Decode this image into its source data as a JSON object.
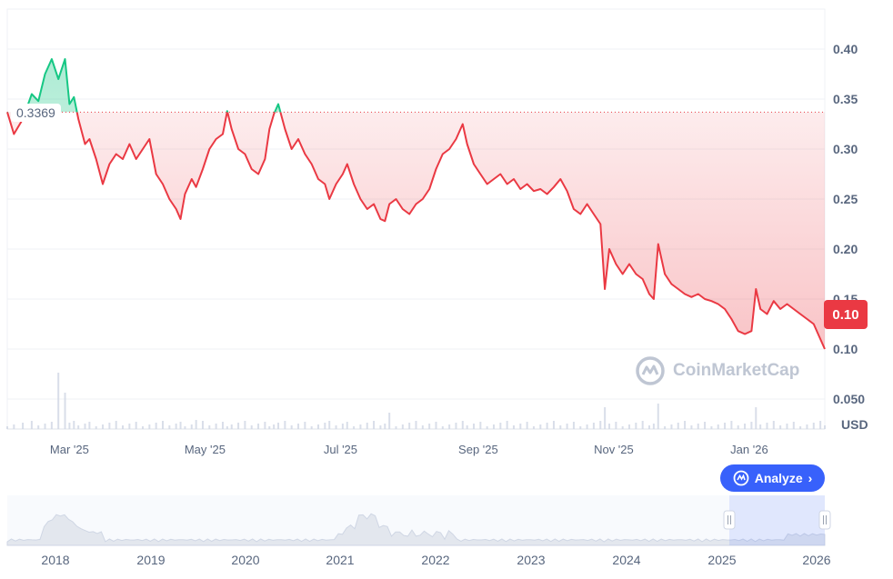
{
  "chart_data": {
    "type": "line",
    "y_unit": "USD",
    "reference_price": "0.3369",
    "reference_value": 0.3369,
    "current_price_label": "0.10",
    "current_value": 0.1,
    "ylim": [
      0.02,
      0.44
    ],
    "y_ticks": [
      {
        "label": "0.40",
        "value": 0.4
      },
      {
        "label": "0.35",
        "value": 0.35
      },
      {
        "label": "0.30",
        "value": 0.3
      },
      {
        "label": "0.25",
        "value": 0.25
      },
      {
        "label": "0.20",
        "value": 0.2
      },
      {
        "label": "0.15",
        "value": 0.15
      },
      {
        "label": "0.10",
        "value": 0.1
      },
      {
        "label": "0.050",
        "value": 0.05
      }
    ],
    "x_ticks": [
      {
        "label": "Mar '25",
        "date": "2025-03-01"
      },
      {
        "label": "May '25",
        "date": "2025-05-01"
      },
      {
        "label": "Jul '25",
        "date": "2025-07-01"
      },
      {
        "label": "Sep '25",
        "date": "2025-09-01"
      },
      {
        "label": "Nov '25",
        "date": "2025-11-01"
      },
      {
        "label": "Jan '26",
        "date": "2026-01-01"
      }
    ],
    "x_range": [
      "2025-02-01",
      "2026-02-04"
    ],
    "series": [
      {
        "color_up": "#16c784",
        "color_down": "#ea3943",
        "points": [
          [
            "2025-02-01",
            0.337
          ],
          [
            "2025-02-04",
            0.315
          ],
          [
            "2025-02-08",
            0.33
          ],
          [
            "2025-02-12",
            0.355
          ],
          [
            "2025-02-15",
            0.348
          ],
          [
            "2025-02-18",
            0.375
          ],
          [
            "2025-02-21",
            0.39
          ],
          [
            "2025-02-24",
            0.37
          ],
          [
            "2025-02-27",
            0.39
          ],
          [
            "2025-03-01",
            0.345
          ],
          [
            "2025-03-03",
            0.352
          ],
          [
            "2025-03-05",
            0.33
          ],
          [
            "2025-03-08",
            0.305
          ],
          [
            "2025-03-10",
            0.31
          ],
          [
            "2025-03-13",
            0.29
          ],
          [
            "2025-03-16",
            0.265
          ],
          [
            "2025-03-19",
            0.285
          ],
          [
            "2025-03-22",
            0.295
          ],
          [
            "2025-03-25",
            0.29
          ],
          [
            "2025-03-28",
            0.305
          ],
          [
            "2025-03-31",
            0.29
          ],
          [
            "2025-04-03",
            0.3
          ],
          [
            "2025-04-06",
            0.31
          ],
          [
            "2025-04-09",
            0.275
          ],
          [
            "2025-04-12",
            0.265
          ],
          [
            "2025-04-15",
            0.25
          ],
          [
            "2025-04-18",
            0.24
          ],
          [
            "2025-04-20",
            0.23
          ],
          [
            "2025-04-22",
            0.255
          ],
          [
            "2025-04-25",
            0.27
          ],
          [
            "2025-04-27",
            0.262
          ],
          [
            "2025-04-30",
            0.28
          ],
          [
            "2025-05-03",
            0.3
          ],
          [
            "2025-05-06",
            0.31
          ],
          [
            "2025-05-09",
            0.315
          ],
          [
            "2025-05-11",
            0.338
          ],
          [
            "2025-05-13",
            0.32
          ],
          [
            "2025-05-16",
            0.3
          ],
          [
            "2025-05-19",
            0.295
          ],
          [
            "2025-05-22",
            0.28
          ],
          [
            "2025-05-25",
            0.275
          ],
          [
            "2025-05-28",
            0.29
          ],
          [
            "2025-05-30",
            0.32
          ],
          [
            "2025-06-01",
            0.335
          ],
          [
            "2025-06-03",
            0.345
          ],
          [
            "2025-06-06",
            0.32
          ],
          [
            "2025-06-09",
            0.3
          ],
          [
            "2025-06-12",
            0.31
          ],
          [
            "2025-06-15",
            0.295
          ],
          [
            "2025-06-18",
            0.285
          ],
          [
            "2025-06-21",
            0.27
          ],
          [
            "2025-06-24",
            0.265
          ],
          [
            "2025-06-26",
            0.25
          ],
          [
            "2025-06-29",
            0.265
          ],
          [
            "2025-07-02",
            0.275
          ],
          [
            "2025-07-04",
            0.285
          ],
          [
            "2025-07-07",
            0.265
          ],
          [
            "2025-07-10",
            0.25
          ],
          [
            "2025-07-13",
            0.24
          ],
          [
            "2025-07-16",
            0.245
          ],
          [
            "2025-07-19",
            0.23
          ],
          [
            "2025-07-21",
            0.228
          ],
          [
            "2025-07-23",
            0.245
          ],
          [
            "2025-07-26",
            0.25
          ],
          [
            "2025-07-29",
            0.24
          ],
          [
            "2025-08-01",
            0.235
          ],
          [
            "2025-08-04",
            0.245
          ],
          [
            "2025-08-07",
            0.25
          ],
          [
            "2025-08-10",
            0.26
          ],
          [
            "2025-08-13",
            0.28
          ],
          [
            "2025-08-16",
            0.295
          ],
          [
            "2025-08-19",
            0.3
          ],
          [
            "2025-08-22",
            0.31
          ],
          [
            "2025-08-25",
            0.325
          ],
          [
            "2025-08-27",
            0.305
          ],
          [
            "2025-08-30",
            0.285
          ],
          [
            "2025-09-02",
            0.275
          ],
          [
            "2025-09-05",
            0.265
          ],
          [
            "2025-09-08",
            0.27
          ],
          [
            "2025-09-11",
            0.275
          ],
          [
            "2025-09-14",
            0.265
          ],
          [
            "2025-09-17",
            0.27
          ],
          [
            "2025-09-20",
            0.26
          ],
          [
            "2025-09-23",
            0.265
          ],
          [
            "2025-09-26",
            0.258
          ],
          [
            "2025-09-29",
            0.26
          ],
          [
            "2025-10-02",
            0.255
          ],
          [
            "2025-10-05",
            0.262
          ],
          [
            "2025-10-08",
            0.27
          ],
          [
            "2025-10-11",
            0.258
          ],
          [
            "2025-10-14",
            0.24
          ],
          [
            "2025-10-17",
            0.235
          ],
          [
            "2025-10-20",
            0.245
          ],
          [
            "2025-10-23",
            0.235
          ],
          [
            "2025-10-26",
            0.225
          ],
          [
            "2025-10-28",
            0.16
          ],
          [
            "2025-10-30",
            0.2
          ],
          [
            "2025-11-02",
            0.185
          ],
          [
            "2025-11-05",
            0.175
          ],
          [
            "2025-11-08",
            0.185
          ],
          [
            "2025-11-11",
            0.175
          ],
          [
            "2025-11-14",
            0.17
          ],
          [
            "2025-11-17",
            0.155
          ],
          [
            "2025-11-19",
            0.15
          ],
          [
            "2025-11-21",
            0.205
          ],
          [
            "2025-11-24",
            0.175
          ],
          [
            "2025-11-27",
            0.165
          ],
          [
            "2025-11-30",
            0.16
          ],
          [
            "2025-12-03",
            0.155
          ],
          [
            "2025-12-06",
            0.152
          ],
          [
            "2025-12-09",
            0.155
          ],
          [
            "2025-12-12",
            0.15
          ],
          [
            "2025-12-15",
            0.148
          ],
          [
            "2025-12-18",
            0.145
          ],
          [
            "2025-12-21",
            0.14
          ],
          [
            "2025-12-24",
            0.13
          ],
          [
            "2025-12-27",
            0.118
          ],
          [
            "2025-12-30",
            0.115
          ],
          [
            "2026-01-02",
            0.118
          ],
          [
            "2026-01-04",
            0.16
          ],
          [
            "2026-01-06",
            0.14
          ],
          [
            "2026-01-09",
            0.135
          ],
          [
            "2026-01-12",
            0.148
          ],
          [
            "2026-01-15",
            0.14
          ],
          [
            "2026-01-18",
            0.145
          ],
          [
            "2026-01-21",
            0.14
          ],
          [
            "2026-01-24",
            0.135
          ],
          [
            "2026-01-27",
            0.13
          ],
          [
            "2026-01-30",
            0.125
          ],
          [
            "2026-02-02",
            0.11
          ],
          [
            "2026-02-04",
            0.1
          ]
        ]
      }
    ],
    "volume_shown": true,
    "navigator": {
      "x_labels": [
        "2018",
        "2019",
        "2020",
        "2021",
        "2022",
        "2023",
        "2024",
        "2025",
        "2026"
      ],
      "selected_range": [
        "2025",
        "2026"
      ]
    }
  },
  "ui": {
    "axis_unit_label": "USD",
    "watermark": "CoinMarketCap",
    "analyze_label": "Analyze",
    "colors": {
      "up": "#16c784",
      "down": "#ea3943",
      "accent": "#3861fb",
      "grid": "#eff2f5",
      "text": "#58667e"
    }
  }
}
